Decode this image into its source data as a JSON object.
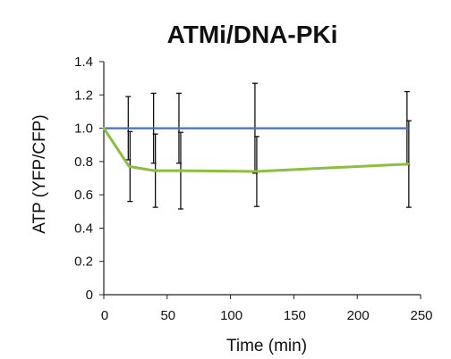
{
  "chart_data": {
    "type": "line",
    "title": "ATMi/DNA-PKi",
    "xlabel": "Time (min)",
    "ylabel": "ATP (YFP/CFP)",
    "xlim": [
      0,
      250
    ],
    "ylim": [
      0,
      1.4
    ],
    "xticks": [
      0,
      50,
      100,
      150,
      200,
      250
    ],
    "yticks": [
      0,
      0.2,
      0.4,
      0.6,
      0.8,
      1.0,
      1.2,
      1.4
    ],
    "ytick_labels": [
      "0",
      "0.2",
      "0.4",
      "0.6",
      "0.8",
      "1.0",
      "1.2",
      "1.4"
    ],
    "grid": false,
    "legend": "none",
    "series": [
      {
        "color": "#4472c4",
        "x": [
          0,
          20,
          40,
          60,
          120,
          240
        ],
        "y": [
          1.0,
          1.0,
          1.0,
          1.0,
          1.0,
          1.0
        ],
        "err": [
          0,
          0.19,
          0.21,
          0.21,
          0.27,
          0.22
        ]
      },
      {
        "color": "#8cbf3f",
        "x": [
          0,
          20,
          40,
          60,
          120,
          240
        ],
        "y": [
          1.0,
          0.77,
          0.745,
          0.745,
          0.74,
          0.785
        ],
        "err": [
          0,
          0.21,
          0.22,
          0.23,
          0.21,
          0.26
        ]
      }
    ]
  }
}
